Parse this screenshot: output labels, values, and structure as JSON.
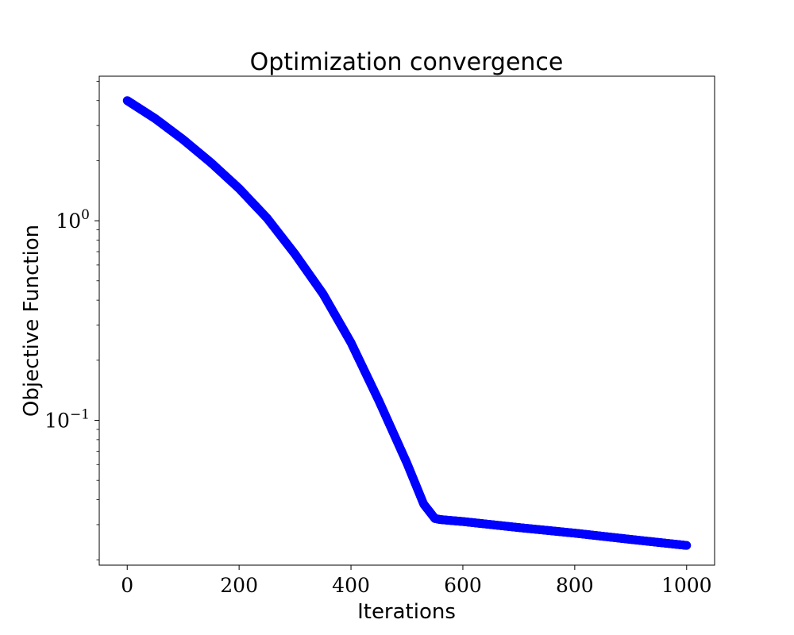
{
  "chart_data": {
    "type": "scatter",
    "title": "Optimization convergence",
    "xlabel": "Iterations",
    "ylabel": "Objective Function",
    "xlim": [
      -50,
      1050
    ],
    "ylim": [
      0.0188,
      5.3
    ],
    "yscale": "log",
    "grid": false,
    "legend": "none",
    "x_ticks": [
      "0",
      "200",
      "400",
      "600",
      "800",
      "1000"
    ],
    "y_ticks": [
      {
        "value": 1,
        "base": "10",
        "exp": "0"
      },
      {
        "value": 0.1,
        "base": "10",
        "exp": "−1"
      }
    ],
    "series": [
      {
        "color": "#0000ff",
        "marker": "circle",
        "x_start": 0,
        "x_end": 1000,
        "knots": [
          {
            "x": 0,
            "y": 4.0
          },
          {
            "x": 50,
            "y": 3.25
          },
          {
            "x": 100,
            "y": 2.55
          },
          {
            "x": 150,
            "y": 1.95
          },
          {
            "x": 200,
            "y": 1.45
          },
          {
            "x": 250,
            "y": 1.03
          },
          {
            "x": 300,
            "y": 0.68
          },
          {
            "x": 350,
            "y": 0.43
          },
          {
            "x": 400,
            "y": 0.245
          },
          {
            "x": 450,
            "y": 0.125
          },
          {
            "x": 500,
            "y": 0.061
          },
          {
            "x": 530,
            "y": 0.038
          },
          {
            "x": 550,
            "y": 0.0322
          },
          {
            "x": 560,
            "y": 0.0318
          },
          {
            "x": 600,
            "y": 0.0311
          },
          {
            "x": 700,
            "y": 0.029
          },
          {
            "x": 800,
            "y": 0.0272
          },
          {
            "x": 900,
            "y": 0.0253
          },
          {
            "x": 1000,
            "y": 0.0236
          }
        ]
      }
    ]
  }
}
